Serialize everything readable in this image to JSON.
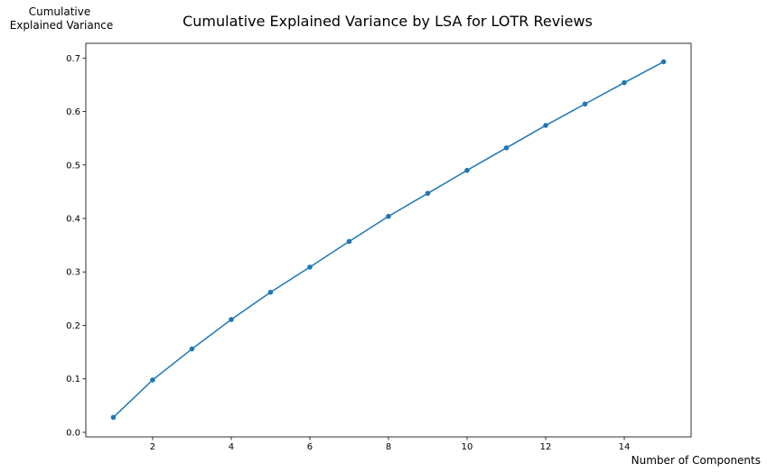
{
  "chart_data": {
    "type": "line",
    "title": "Cumulative Explained Variance by LSA for LOTR Reviews",
    "xlabel": "Number of Components",
    "ylabel_lines": [
      "Cumulative",
      "Explained Variance"
    ],
    "x": [
      1,
      2,
      3,
      4,
      5,
      6,
      7,
      8,
      9,
      10,
      11,
      12,
      13,
      14,
      15
    ],
    "series": [
      {
        "values": [
          0.028,
          0.098,
          0.156,
          0.211,
          0.262,
          0.309,
          0.357,
          0.404,
          0.447,
          0.49,
          0.532,
          0.574,
          0.614,
          0.654,
          0.693
        ],
        "color": "#1f77b4",
        "marker": "circle"
      }
    ],
    "xlim": [
      0.3,
      15.7
    ],
    "ylim": [
      -0.0085,
      0.7275
    ],
    "xticks": [
      "2",
      "4",
      "6",
      "8",
      "10",
      "12",
      "14"
    ],
    "yticks": [
      "0.0",
      "0.1",
      "0.2",
      "0.3",
      "0.4",
      "0.5",
      "0.6",
      "0.7"
    ],
    "grid": false,
    "legend": "none"
  }
}
